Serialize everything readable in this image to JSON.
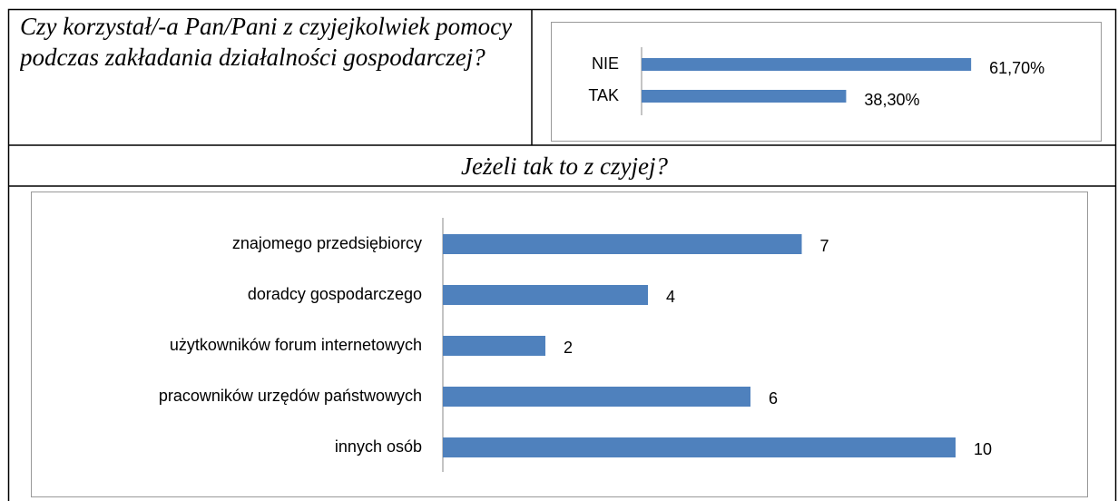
{
  "question": "Czy korzystał/-a Pan/Pani z czyjejkolwiek pomocy podczas zakładania działalności gospodarczej?",
  "subheading": "Jeżeli tak to z czyjej?",
  "chart_data": [
    {
      "type": "bar",
      "orientation": "horizontal",
      "categories": [
        "NIE",
        "TAK"
      ],
      "values": [
        61.7,
        38.3
      ],
      "value_labels": [
        "61,70%",
        "38,30%"
      ],
      "color": "#4f81bd",
      "xlim": [
        0,
        70
      ]
    },
    {
      "type": "bar",
      "orientation": "horizontal",
      "categories": [
        "znajomego przedsiębiorcy",
        "doradcy gospodarczego",
        "użytkowników forum internetowych",
        "pracowników urzędów państwowych",
        "innych osób"
      ],
      "values": [
        7,
        4,
        2,
        6,
        10
      ],
      "color": "#4f81bd",
      "xlim": [
        0,
        12
      ]
    }
  ]
}
